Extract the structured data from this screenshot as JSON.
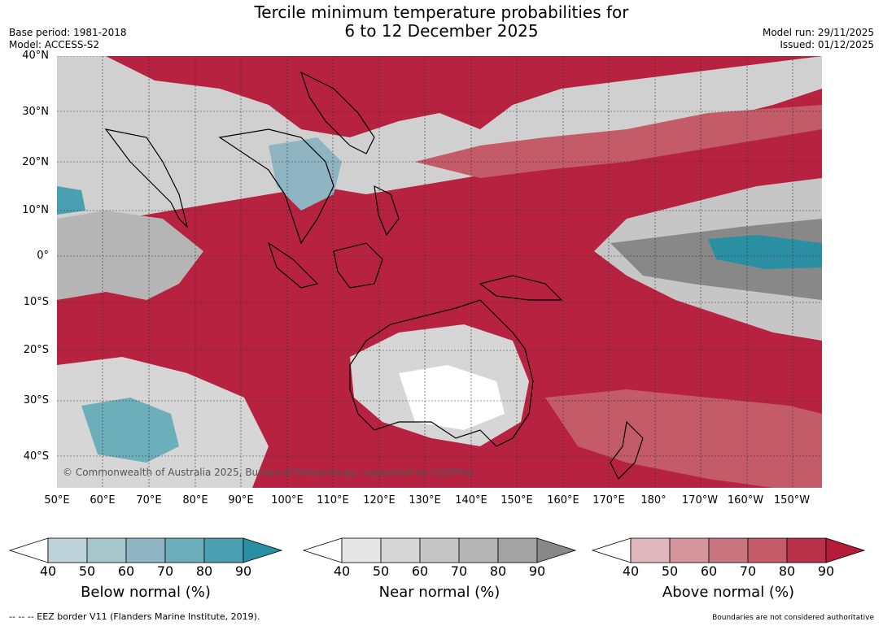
{
  "title": {
    "line1": "Tercile minimum temperature probabilities for",
    "line2": "6 to 12 December 2025"
  },
  "meta_left": {
    "base_period": "Base period: 1981-2018",
    "model": "Model: ACCESS-S2"
  },
  "meta_right": {
    "model_run": "Model run: 29/11/2025",
    "issued": "Issued: 01/12/2025"
  },
  "map": {
    "lat_labels": [
      "40°N",
      "30°N",
      "20°N",
      "10°N",
      "0°",
      "10°S",
      "20°S",
      "30°S",
      "40°S"
    ],
    "lon_labels": [
      "50°E",
      "60°E",
      "70°E",
      "80°E",
      "90°E",
      "100°E",
      "110°E",
      "120°E",
      "130°E",
      "140°E",
      "150°E",
      "160°E",
      "170°E",
      "180°",
      "170°W",
      "160°W",
      "150°W"
    ],
    "copyright": "© Commonwealth of Australia 2025, Bureau of Meteorology, supported by COSPPac"
  },
  "colorbars": [
    {
      "label": "Below normal (%)",
      "ticks": [
        "40",
        "50",
        "60",
        "70",
        "80",
        "90"
      ],
      "colors": [
        "#bdd3d9",
        "#a5c7cb",
        "#8fb5c2",
        "#6daebb",
        "#4a9fb0",
        "#2b8fa4"
      ]
    },
    {
      "label": "Near normal (%)",
      "ticks": [
        "40",
        "50",
        "60",
        "70",
        "80",
        "90"
      ],
      "colors": [
        "#e6e6e6",
        "#d6d6d6",
        "#c6c6c6",
        "#b5b5b5",
        "#a3a3a3",
        "#888888"
      ]
    },
    {
      "label": "Above normal (%)",
      "ticks": [
        "40",
        "50",
        "60",
        "70",
        "80",
        "90"
      ],
      "colors": [
        "#e0b7bd",
        "#d4959c",
        "#c97580",
        "#c45b68",
        "#b93249",
        "#b41c3a"
      ]
    }
  ],
  "footer": {
    "eez": "--  --  -- EEZ border V11 (Flanders Marine Institute, 2019).",
    "boundaries": "Boundaries are not considered authoritative"
  }
}
